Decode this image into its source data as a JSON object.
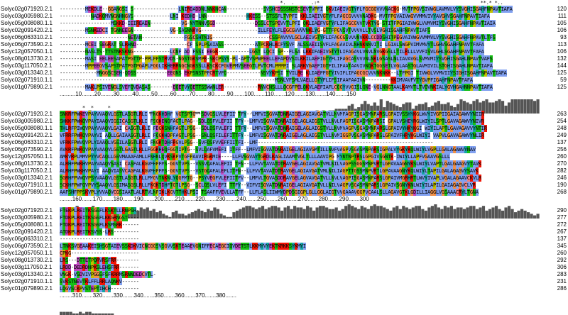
{
  "blocks": [
    {
      "consensus": "                                                                              *.  .      .:*                                                         **.* *..",
      "rows": [
        {
          "name": "Solyc02g071920.2.1",
          "seq": "---------MEKDLE--GGANGSI S----------------LNIRDADDNLNNKNCAN-------------SVSHCDSSSNSTCSEVTVPFI QKVIAEIVGTYFLFGCGGVVVNACKG-MVTFPGVSIVWGLAVMVLVYSVGHISGAHFNPAVTIAFA",
          "end": "120"
        },
        {
          "name": "Solyc03g005980.2.1",
          "seq": "-----------NADKQMVNGNHNGVS-------------LNI KEDHD-LNN--------------HKESS--STSSFLTVPFI KKLIAEIVGTYFLFAGCGVVVVNADKG-MVTFPGVAIVWGVVMMVIVYAVGHVSGAHFNPAVTIAFA",
          "end": "111"
        },
        {
          "name": "Solyc05g008080.1.1",
          "seq": "------------------MSKKD-IEIREAEN-----------VG-NYTNNVSGD--------------DSSLCTSPEVVTLPFI QKLIAEFVGTYFLIFAGCGVVTVKTYG-STITFPGIAIVWGLVVMVMIYSVGHISGAHFNPAVTIAIA",
          "end": "105"
        },
        {
          "name": "Solyc02g091420.2.1",
          "seq": "---------MSNKEDCI TGNNEEGN-------------VG-SASNNKVG--------------------ILLFEYLFLEGCGVVVVNKLYG-GTTFPGVSVTVVVVLLTVSLVGHISGAHFNPAVTIAFS",
          "end": "106"
        },
        {
          "name": "Solyc06g063310.2.1",
          "seq": "------------------------NETAN---------------FGSCSHTNIG--------------------CSSPAVVVLGCLAEIVGTYFLIFAGCGSVVVNVKKLCCDDSHITPEGVAIVWGVVMMVLVYSVGHISGAHFNPAVTLTFS",
          "end": "93"
        },
        {
          "name": "Solyc06g073590.2.1",
          "seq": "---------MCEI SEGRAT SLRHND------------------CF SPLPSAIASS-----------ATPCKHLKCFYSVF ALSSAEIISVFLFAGAAIVLNHNKNNVITI LGIALSWGPVIMVMVYTLGHVSGAHFNPAVTFAFA",
          "end": "113"
        },
        {
          "name": "Solyc12g057050.1.1",
          "seq": "---------NASLTS-TTSTNKSKNG-------------LCNF AD FSSI EEGK-----------LGST LQCI SP--FLSA LKKIFAEIVGTYTLIFAGAVLVNVLNVGKGSLLTILRLLLVVFISVLGHLSGAHFNPAVTFAFA",
          "end": "106"
        },
        {
          "name": "Solyc08g013730.2.1",
          "seq": "---------MASI EELEESAPATPGTTP-PPLPPSTRVDS-NGSTGKSMPR-SKCPSYS-PL-APTVSPWPEELLEFAPDVSILKKILAEFIGTYFLIFAGCASVVVNLNKLGSASLNLIAVAVGLSVMVMIYSVGHISGAHLNPAVTVAFS",
          "end": "132"
        },
        {
          "name": "Solyc03g117050.2.1",
          "seq": "---------MPPEEGVSAPSTPATPGTPGAPLFGGLIKHERRNGCNGKSSLLKSCKCFGVEPMVSEEGTLPVTCMLPPPPI SLARKVGAEFIGTFILIFAATAAVIVNQKTGGSETLVGLAASTGLAVMIVILSTGHISGAHLNPAVTIAFA",
          "end": "144"
        },
        {
          "name": "Solyc03g013340.2.1",
          "seq": "-------------MNGGSCSEH-QDSS-----------EEGNS EKPSNSTPFCRTVFQ------------NSVYKPSI TVILRE KLIAEFFGTYIVIFLIFAGCGCVVVNKNKK--LTFPGI TIVWGLVVMVIIYSIGHISGAHFNPAVTIAFA",
          "end": "125"
        },
        {
          "name": "Solyc02g071910.1.1",
          "seq": "----------------------------------------------------------------------------MSNLVFSMLVAELLGTYFLIFSIFAAFAAIVN---------KKIMVAVFVTYGVPFIGAHFNPAVTFAFA",
          "end": "59"
        },
        {
          "name": "Solyc01g079890.2.1",
          "seq": "---------MAKLPSIVENGLSVEFQVDASAS--------EQETVYQETTSSWWNLER------------RNVCNSLLLQCGFPELQKVLAEFIAFLCQGYVVGISLQNE-VGLNNGTAALKAMVTLTVQVNKIALYGVHGAHNNPAVTIAFA",
          "end": "125"
        }
      ],
      "ruler": "..........10........20........30........40........50........60........70........80........90.......100.......110.......120.......130.......140.......150",
      "bars": [
        0,
        0,
        0,
        0,
        0,
        0,
        0,
        0,
        0,
        2,
        1,
        0,
        1,
        0,
        1,
        0,
        0,
        1,
        2,
        1,
        0,
        1,
        0,
        1,
        1,
        1,
        0,
        0,
        1,
        0,
        1,
        0,
        0,
        0,
        0,
        0,
        0,
        0,
        0,
        0,
        1,
        0,
        1,
        1,
        0,
        1,
        0,
        0,
        0,
        0,
        1,
        1,
        1,
        1,
        1,
        0,
        1,
        0,
        0,
        0,
        1,
        0,
        0,
        0,
        0,
        0,
        0,
        0,
        0,
        0,
        0,
        0,
        0,
        0,
        0,
        0,
        0,
        0,
        0,
        0,
        2,
        1,
        2,
        1,
        2,
        2,
        3,
        3,
        3,
        3,
        5,
        6,
        3,
        4,
        6,
        8,
        6,
        5,
        7,
        5,
        9,
        4,
        8,
        7,
        6,
        5,
        4,
        6,
        7,
        7,
        3,
        5,
        6,
        6,
        7,
        4,
        5,
        7,
        8,
        6,
        6,
        7,
        5,
        4,
        6,
        9,
        8,
        7,
        6,
        8,
        9,
        7,
        8,
        9,
        7,
        7,
        8,
        9,
        8,
        5,
        7,
        9,
        9,
        9,
        9,
        9,
        9,
        9,
        8,
        9
      ]
    },
    {
      "consensus": "        *  *     *                                                                                                                                             ",
      "rows": [
        {
          "name": "Solyc02g071920.2.1",
          "seq": "SNKRFPWKEVPAYVVAQVLGSTLASGTLRLI FNGKHDHF VGTSPTG--SDVGSLVLEFII TFY--LMFVISGVATDNRAIGELAGIAVGATVLLNVMFAGPISGASMNPARSLGPAIVSSHYKGLWVYIVGPIIGAIAGAWVYNIIR",
          "end": "263"
        },
        {
          "name": "Solyc03g005980.2.1",
          "seq": "SHKKFPWKQVPAYIAAQVIGSICASGTLKLI FSGKENQFAGTLPAG--SDLQSFVLEFII TFY--LMFVISGVATDNRAIGELAGLAIGSTVLLNVLFAGPISGASMNPARSI GPALVSHEYRGLWIYILSPTLGAVAGAWVYNIVR",
          "end": "254"
        },
        {
          "name": "Solyc05g008080.1.1",
          "seq": "THLRFPIWQVPAYVVAQVLGAI CASGTLKLI FDGKSNHFAGTLPSG--SDLQSFVLEFI TTFY--LMFVISGVATDNRAIGELAGLAIGSTVLLNVMVAGPVSGASMNPARSLGPAIVYHKYKGI WIYILAPTLGAVAGAVVYNTIR",
          "end": "248"
        },
        {
          "name": "Solyc02g091420.2.1",
          "seq": "VFRRFPWKQVPAYVI AQLLGAIAASGTLRLI FQGKHDPFAGTLPSG--SNLQSFILEFITTFY--LMFVISGVATDNRAIGELAGLAIGSTVLLNVMIGGPVSGASMNPARSLGPAIVFHRYKGLWIYI VAPVLGAVAGAWVYNLIR",
          "end": "249"
        },
        {
          "name": "Solyc06g063310.2.1",
          "seq": "VFRKFPWVQVPLYIAAQLVGSILASGTLRLI FNGKTDHFRGVLPSG--SVFQSFVVEFFIITFI--LMF--------------------------------------------------------------",
          "end": "137"
        },
        {
          "name": "Solyc06g073590.2.1",
          "seq": "AVKRFPWKQVPAYVAAQVLGSTLGAGTLRLLFGGKHEQFGGTIPTG--SVLQAFVMEFI ITFF--LMFVISGVATDNRAIGELAGIAVGMTILLNVFVAGPVSGASMNPARSIGPALVYGKYKQLWIYLVGPLLGALAGAWVYNAV",
          "end": "256"
        },
        {
          "name": "Solyc12g057050.1.1",
          "seq": "AMKVRPLMMVPYYVCAQLLGSVMAAAFAMLLFNHNLQVKSKPVTGFPAAVIRGKMIE----LLFVSGVAYTGRDLKAGLIAAMTVGLTLLLAAVIPG MYNTNPTRSLGPGIVSGNTK-IWIYLLAPFVGAAVGSLLL",
          "end": "260"
        },
        {
          "name": "Solyc08g013730.2.1",
          "seq": "ALRHFPWKHVPAYVAAQVSASI CASFALKGVFHPFMS-GGVTVPS--VSSVQAFALEFII TFN--LLFVVTAVATDTRAVGELAGIAVGATVMLNILVAGPSSGGSMNPVRTLGPAVAAGNYKSLWIYLVAPTLGALGAAGVYTAVK",
          "end": "270"
        },
        {
          "name": "Solyc03g117050.2.1",
          "seq": "ALRHFPWKHVPAYI AAQVIASVCAGFALKGVFHPFMS-GGVTVPS--VSTGQAFALEFLITFN--LLFVVTAVATDTRAVGELAGIAVGATVMLNILIAGPTTGSSMNPVRTLGPAVAAGNYKQLWIYLTAPILGALAGAGVYSAVK",
          "end": "282"
        },
        {
          "name": "Solyc03g013340.2.1",
          "seq": "SGRHFPVWQVPSYVAAQVLGSTLASGTLRLLFMGVTNKNLYQGFMTG--PSYVEGFVLEFIITFV--LMFVLTGVASDDRAVGELAGVAVGATVLLNVLVAGPISGASMNPARSLGPAIVMGRHRTLWVYIVAPLVGALAGAAVCKVLR",
          "end": "246"
        },
        {
          "name": "Solyc02g071910.1.1",
          "seq": "SCKHFPWFQVPVYSAAQVLGSIMASGSLRLLFKGKTDHFTGTLPSG--SCLQSLVLEFI TTFY--VIFVISGVATDNRAIGELAGIAVGATVLLNILVAGPVSGASMNPARSLGPAIVSGNYKNLWIYILAPILGAIAGAGVCLVR",
          "end": "190"
        },
        {
          "name": "Solyc01g079890.2.1",
          "seq": "AAFSHFPPSKVPLYVVAQVCGSIAATLALRTVLNPIKLKGVTTHKLPSI TSAAFFVEVLLATFF--LLFLASLIIWMYDPDSGIGPLGLLGGLAIGTVVGAAAVGGPVCAALSLLAGAVGTKLGDILLIAGGLVGSAAACRYLTGNA",
          "end": "268"
        }
      ],
      "ruler": "........160.......170.......180.......190.......200.......210.......220.......230.......240.......250.......260.......270.......280.......290.......300",
      "bars": [
        3,
        5,
        4,
        6,
        6,
        8,
        7,
        5,
        6,
        7,
        8,
        6,
        5,
        4,
        5,
        7,
        6,
        5,
        6,
        4,
        5,
        3,
        4,
        6,
        5,
        7,
        6,
        7,
        5,
        6,
        4,
        5,
        3,
        2,
        1,
        4,
        5,
        3,
        3,
        2,
        3,
        4,
        5,
        6,
        5,
        4,
        6,
        5,
        7,
        6,
        3,
        2,
        1,
        1,
        4,
        5,
        6,
        7,
        8,
        8,
        7,
        6,
        7,
        8,
        6,
        7,
        8,
        8,
        7,
        5,
        7,
        8,
        6,
        8,
        7,
        7,
        6,
        8,
        7,
        5,
        7,
        8,
        8,
        7,
        6,
        6,
        7,
        5,
        6,
        8,
        9,
        8,
        7,
        6,
        8,
        7,
        6,
        8,
        9,
        8,
        8,
        7,
        6,
        5,
        7,
        8,
        6,
        8,
        7,
        6,
        7,
        8,
        8,
        6,
        5,
        7,
        8,
        9,
        7,
        6,
        8,
        7,
        8,
        6,
        7,
        7,
        6,
        7,
        8,
        8,
        6,
        7,
        8,
        5,
        6,
        7,
        8,
        6,
        5,
        7,
        8,
        6,
        4,
        5,
        6,
        5,
        4,
        3,
        2,
        3
      ]
    },
    {
      "consensus": "                                                                                                                                                        ",
      "rows": [
        {
          "name": "Solyc02g071920.2.1",
          "seq": "FTEKPLREITKSGSFLKSKTLLRNPSH-",
          "end": "290"
        },
        {
          "name": "Solyc03g005980.2.1",
          "seq": "FTDKPLREITKSGSFLKKGRNGST----",
          "end": "277"
        },
        {
          "name": "Solyc05g008080.1.1",
          "seq": "FTDKPLREITKSGSFLKSMSRK------",
          "end": "272"
        },
        {
          "name": "Solyc02g091420.2.1",
          "seq": "ATDKPLREITKSVSS-LRS---------",
          "end": "267"
        },
        {
          "name": "Solyc06g063310.2.1",
          "seq": "----------------------------",
          "end": "137"
        },
        {
          "name": "Solyc06g073590.2.1",
          "seq": "LTNKSVGEAAKEISHSGTAIEVSSKDKVICNCGGSVSGVVSKTEAAEVGNIFFECAEGCIQVDETSTLKKMYVYEKTKRKKSYKMYI",
          "end": "345"
        },
        {
          "name": "Solyc12g057050.1.1",
          "seq": "CPKG------------------------",
          "end": "260"
        },
        {
          "name": "Solyc08g013730.2.1",
          "seq": "LRS---DTTETPQRVRSFRR--------",
          "end": "292"
        },
        {
          "name": "Solyc03g117050.2.1",
          "seq": "LRDD-DEDRDNPKSLEHSFRR-------",
          "end": "306"
        },
        {
          "name": "Solyc03g013340.2.1",
          "seq": "VNGK-VSDVIVPGGSFSFKRRMSRNNDEDCVTL-",
          "end": "283"
        },
        {
          "name": "Solyc02g071910.1.1",
          "seq": "SVKSTNEVTKLFFLRRLAQNKV------",
          "end": "231"
        },
        {
          "name": "Solyc01g079890.2.1",
          "seq": "LQGVSCKPVSTEPTIHCH----------",
          "end": "286"
        }
      ],
      "ruler": "........310.......320.......330.......340.......350.......360.......370.......380.......",
      "bars": [
        2,
        2,
        2,
        2,
        1,
        1,
        2,
        1,
        2,
        2,
        1,
        1,
        1,
        1,
        1,
        1,
        1,
        0,
        0,
        0,
        0,
        0,
        0,
        0,
        0,
        0,
        0,
        0,
        0,
        0,
        0,
        0,
        0,
        0,
        0,
        0,
        0,
        0,
        0,
        0,
        0,
        0,
        0,
        0,
        0,
        0,
        0,
        0,
        0,
        0,
        0,
        0,
        0,
        0,
        0,
        0,
        0,
        0,
        0,
        0,
        0,
        0,
        0,
        0,
        0,
        0,
        0,
        0,
        0,
        0,
        0,
        0,
        0,
        0,
        0,
        0,
        0,
        0,
        0,
        0,
        0,
        0,
        0,
        0,
        0,
        0,
        0
      ]
    }
  ],
  "colors": {
    "hydrophobic": "#80a0f0",
    "positive": "#f01505",
    "negative": "#c048c0",
    "polar": "#15c015",
    "cysteine": "#f08080",
    "glycine": "#f09048",
    "proline": "#c0c000",
    "aromatic": "#15a4a4",
    "bar": "#555555"
  }
}
